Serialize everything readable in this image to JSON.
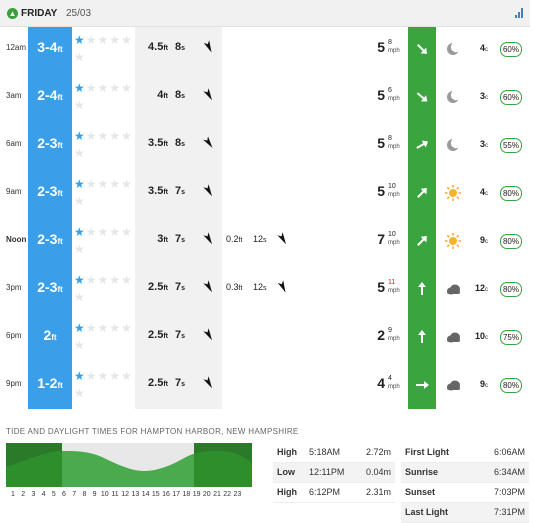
{
  "header": {
    "day": "FRIDAY",
    "date": "25/03"
  },
  "colors": {
    "surf": "#3a9fe8",
    "wind": "#3aa43f",
    "star_on": "#3a9fe8"
  },
  "rows": [
    {
      "time": "12am",
      "bold": false,
      "surf": "3-4",
      "unit": "ft",
      "stars": 1,
      "swell_h": "4.5",
      "swell_p": "8",
      "swell_dir": 155,
      "swell2_h": "",
      "swell2_p": "",
      "swell2_dir": null,
      "wind": "5",
      "gust": "8",
      "wind_unit": "mph",
      "wind_dir": 135,
      "wind_gust_red": false,
      "weather": "moon",
      "temp": "4",
      "temp_unit": "c",
      "humidity": "60%"
    },
    {
      "time": "3am",
      "bold": false,
      "surf": "2-4",
      "unit": "ft",
      "stars": 1,
      "swell_h": "4",
      "swell_p": "8",
      "swell_dir": 150,
      "swell2_h": "",
      "swell2_p": "",
      "swell2_dir": null,
      "wind": "5",
      "gust": "6",
      "wind_unit": "mph",
      "wind_dir": 130,
      "wind_gust_red": false,
      "weather": "moon",
      "temp": "3",
      "temp_unit": "c",
      "humidity": "60%"
    },
    {
      "time": "6am",
      "bold": false,
      "surf": "2-3",
      "unit": "ft",
      "stars": 1,
      "swell_h": "3.5",
      "swell_p": "8",
      "swell_dir": 145,
      "swell2_h": "",
      "swell2_p": "",
      "swell2_dir": null,
      "wind": "5",
      "gust": "8",
      "wind_unit": "mph",
      "wind_dir": 60,
      "wind_gust_red": false,
      "weather": "moon",
      "temp": "3",
      "temp_unit": "c",
      "humidity": "55%"
    },
    {
      "time": "9am",
      "bold": false,
      "surf": "2-3",
      "unit": "ft",
      "stars": 1,
      "swell_h": "3.5",
      "swell_p": "7",
      "swell_dir": 150,
      "swell2_h": "",
      "swell2_p": "",
      "swell2_dir": null,
      "wind": "5",
      "gust": "10",
      "wind_unit": "mph",
      "wind_dir": 45,
      "wind_gust_red": false,
      "weather": "sun",
      "temp": "4",
      "temp_unit": "c",
      "humidity": "80%"
    },
    {
      "time": "Noon",
      "bold": true,
      "surf": "2-3",
      "unit": "ft",
      "stars": 1,
      "swell_h": "3",
      "swell_p": "7",
      "swell_dir": 150,
      "swell2_h": "0.2",
      "swell2_p": "12",
      "swell2_dir": 150,
      "wind": "7",
      "gust": "10",
      "wind_unit": "mph",
      "wind_dir": 45,
      "wind_gust_red": false,
      "weather": "sun",
      "temp": "9",
      "temp_unit": "c",
      "humidity": "80%"
    },
    {
      "time": "3pm",
      "bold": false,
      "surf": "2-3",
      "unit": "ft",
      "stars": 1,
      "swell_h": "2.5",
      "swell_p": "7",
      "swell_dir": 150,
      "swell2_h": "0.3",
      "swell2_p": "12",
      "swell2_dir": 155,
      "wind": "5",
      "gust": "11",
      "wind_unit": "mph",
      "wind_dir": 0,
      "wind_gust_red": true,
      "weather": "cloud",
      "temp": "12",
      "temp_unit": "c",
      "humidity": "80%"
    },
    {
      "time": "6pm",
      "bold": false,
      "surf": "2",
      "unit": "ft",
      "stars": 1,
      "swell_h": "2.5",
      "swell_p": "7",
      "swell_dir": 150,
      "swell2_h": "",
      "swell2_p": "",
      "swell2_dir": null,
      "wind": "2",
      "gust": "9",
      "wind_unit": "mph",
      "wind_dir": 0,
      "wind_gust_red": false,
      "weather": "cloud",
      "temp": "10",
      "temp_unit": "c",
      "humidity": "75%"
    },
    {
      "time": "9pm",
      "bold": false,
      "surf": "1-2",
      "unit": "ft",
      "stars": 1,
      "swell_h": "2.5",
      "swell_p": "7",
      "swell_dir": 150,
      "swell2_h": "",
      "swell2_p": "",
      "swell2_dir": null,
      "wind": "4",
      "gust": "4",
      "wind_unit": "mph",
      "wind_dir": 90,
      "wind_gust_red": false,
      "weather": "cloud",
      "temp": "9",
      "temp_unit": "c",
      "humidity": "80%"
    }
  ],
  "swell_units": {
    "height": "ft",
    "period": "s"
  },
  "tide": {
    "title": "TIDE AND DAYLIGHT TIMES FOR HAMPTON HARBOR, NEW HAMPSHIRE",
    "hours": [
      "1",
      "2",
      "3",
      "4",
      "5",
      "6",
      "7",
      "8",
      "9",
      "10",
      "11",
      "12",
      "13",
      "14",
      "15",
      "16",
      "17",
      "18",
      "19",
      "20",
      "21",
      "22",
      "23"
    ],
    "table": [
      {
        "label": "High",
        "time": "5:18AM",
        "height": "2.72m"
      },
      {
        "label": "Low",
        "time": "12:11PM",
        "height": "0.04m"
      },
      {
        "label": "High",
        "time": "6:12PM",
        "height": "2.31m"
      }
    ],
    "daylight": [
      {
        "label": "First Light",
        "time": "6:06AM"
      },
      {
        "label": "Sunrise",
        "time": "6:34AM"
      },
      {
        "label": "Sunset",
        "time": "7:03PM"
      },
      {
        "label": "Last Light",
        "time": "7:31PM"
      }
    ]
  }
}
